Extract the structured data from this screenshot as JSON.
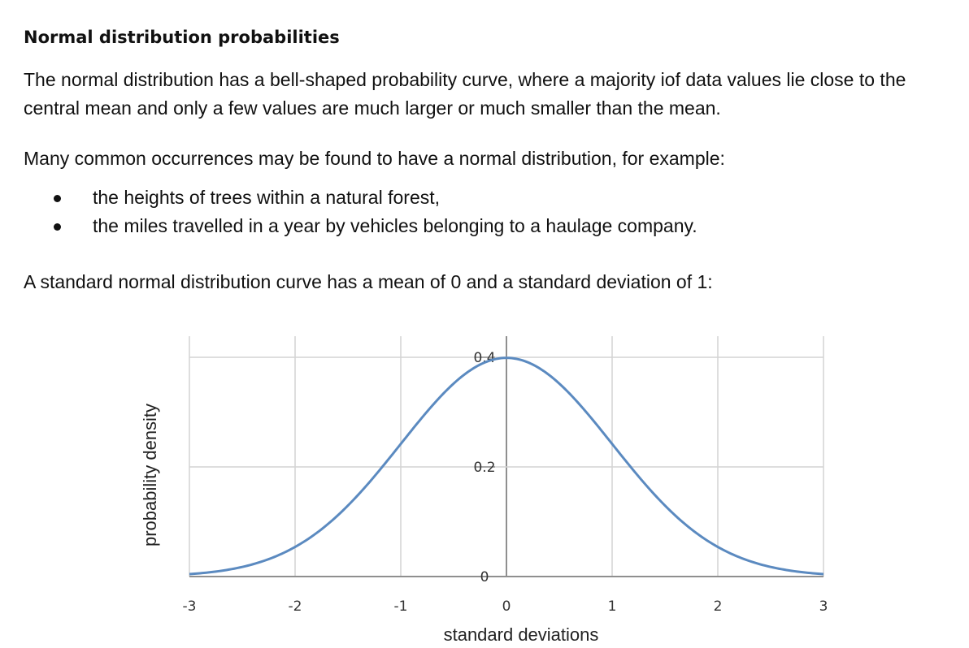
{
  "document": {
    "title": "Normal distribution probabilities",
    "paragraph_1": "The normal distribution has a bell-shaped probability curve, where a majority iof data values lie close to the central mean and only a few values are much larger or much smaller than the mean.",
    "paragraph_2": "Many common occurrences may be found to have a normal distribution, for example:",
    "bullets": [
      "the heights of trees within a natural forest,",
      "the miles travelled in a year by vehicles belonging to a haulage company."
    ],
    "paragraph_3": "A standard normal distribution curve has a mean of 0 and a standard deviation of 1:"
  },
  "chart_data": {
    "type": "line",
    "xlabel": "standard deviations",
    "ylabel": "probability density",
    "xlim": [
      -3,
      3
    ],
    "ylim": [
      0,
      0.4
    ],
    "x_ticks": [
      "-3",
      "-2",
      "-1",
      "0",
      "1",
      "2",
      "3"
    ],
    "y_ticks": [
      "0",
      "0.2",
      "0.4"
    ],
    "grid": true,
    "line_color": "#5b8ac0",
    "series": [
      {
        "x": [
          -3,
          -2.5,
          -2,
          -1.5,
          -1,
          -0.5,
          0,
          0.5,
          1,
          1.5,
          2,
          2.5,
          3
        ],
        "y": [
          0.0044,
          0.0175,
          0.054,
          0.1295,
          0.242,
          0.352,
          0.399,
          0.352,
          0.242,
          0.1295,
          0.054,
          0.0175,
          0.0044
        ]
      }
    ]
  }
}
